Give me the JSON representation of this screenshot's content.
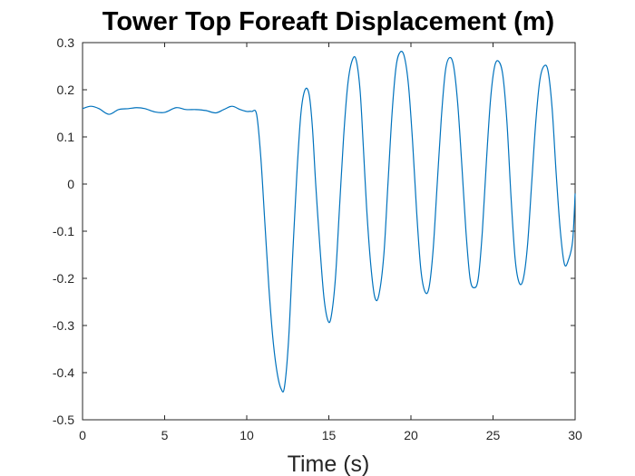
{
  "chart_data": {
    "type": "line",
    "title": "Tower Top Foreaft Displacement (m)",
    "xlabel": "Time (s)",
    "ylabel": "",
    "xlim": [
      0,
      30
    ],
    "ylim": [
      -0.5,
      0.3
    ],
    "xticks": [
      0,
      5,
      10,
      15,
      20,
      25,
      30
    ],
    "yticks": [
      0.3,
      0.2,
      0.1,
      0,
      -0.1,
      -0.2,
      -0.3,
      -0.4,
      -0.5
    ],
    "xtick_labels": [
      "0",
      "5",
      "10",
      "15",
      "20",
      "25",
      "30"
    ],
    "ytick_labels": [
      "0.3",
      "0.2",
      "0.1",
      "0",
      "-0.1",
      "-0.2",
      "-0.3",
      "-0.4",
      "-0.5"
    ],
    "grid": false,
    "series": [
      {
        "color": "#0072bd",
        "x": [
          0,
          0.5,
          1.0,
          1.6,
          2.2,
          2.8,
          3.3,
          3.8,
          4.4,
          5.0,
          5.7,
          6.3,
          6.9,
          7.5,
          8.1,
          8.6,
          9.1,
          9.6,
          10.0,
          10.3,
          10.6,
          10.85,
          11.1,
          11.35,
          11.6,
          11.85,
          12.1,
          12.3,
          12.55,
          12.8,
          13.05,
          13.3,
          13.55,
          13.8,
          14.0,
          14.2,
          14.45,
          14.7,
          14.95,
          15.15,
          15.4,
          15.65,
          15.9,
          16.15,
          16.4,
          16.65,
          16.9,
          17.1,
          17.3,
          17.55,
          17.8,
          18.05,
          18.35,
          18.6,
          18.85,
          19.1,
          19.35,
          19.6,
          19.85,
          20.1,
          20.35,
          20.6,
          20.85,
          21.1,
          21.35,
          21.6,
          21.85,
          22.1,
          22.35,
          22.6,
          22.85,
          23.1,
          23.35,
          23.6,
          23.85,
          24.1,
          24.35,
          24.6,
          24.85,
          25.1,
          25.35,
          25.6,
          25.85,
          26.1,
          26.35,
          26.6,
          26.85,
          27.1,
          27.35,
          27.6,
          27.85,
          28.1,
          28.35,
          28.6,
          28.85,
          29.1,
          29.35,
          29.6,
          29.85,
          30.0
        ],
        "y": [
          0.16,
          0.165,
          0.16,
          0.148,
          0.158,
          0.16,
          0.162,
          0.16,
          0.153,
          0.152,
          0.162,
          0.158,
          0.158,
          0.156,
          0.151,
          0.158,
          0.165,
          0.158,
          0.154,
          0.154,
          0.148,
          0.06,
          -0.08,
          -0.22,
          -0.33,
          -0.4,
          -0.435,
          -0.43,
          -0.33,
          -0.15,
          0.02,
          0.15,
          0.2,
          0.19,
          0.12,
          0.0,
          -0.13,
          -0.24,
          -0.29,
          -0.28,
          -0.2,
          -0.05,
          0.1,
          0.21,
          0.26,
          0.265,
          0.2,
          0.08,
          -0.05,
          -0.17,
          -0.24,
          -0.235,
          -0.15,
          0.0,
          0.15,
          0.25,
          0.28,
          0.27,
          0.21,
          0.09,
          -0.06,
          -0.18,
          -0.228,
          -0.22,
          -0.14,
          0.0,
          0.14,
          0.24,
          0.268,
          0.25,
          0.17,
          0.04,
          -0.1,
          -0.2,
          -0.22,
          -0.2,
          -0.1,
          0.05,
          0.18,
          0.25,
          0.26,
          0.23,
          0.13,
          -0.03,
          -0.16,
          -0.21,
          -0.2,
          -0.13,
          0.0,
          0.13,
          0.22,
          0.25,
          0.24,
          0.16,
          0.02,
          -0.1,
          -0.17,
          -0.16,
          -0.12,
          -0.02
        ]
      }
    ]
  },
  "style": {
    "line_color": "#0072bd",
    "axis_color": "#262626",
    "background": "#ffffff"
  }
}
